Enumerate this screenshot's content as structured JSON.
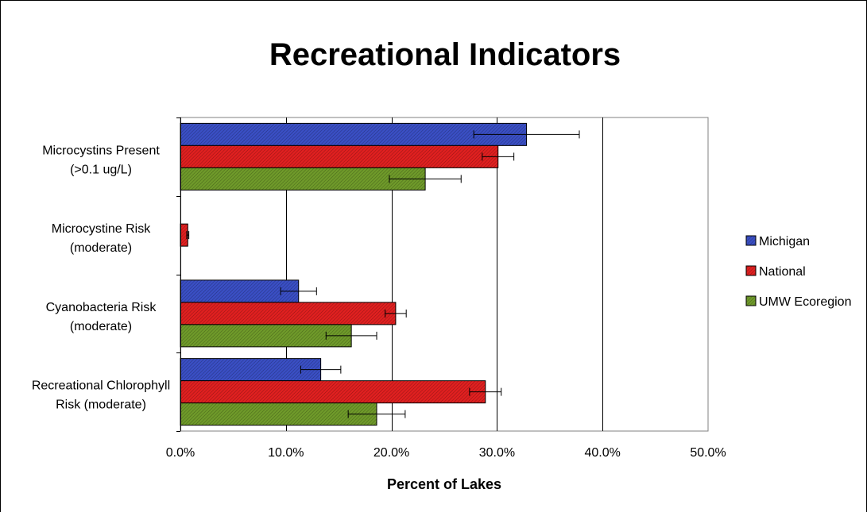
{
  "chart_data": {
    "type": "bar",
    "orientation": "horizontal",
    "title": "Recreational Indicators",
    "xlabel": "Percent of Lakes",
    "ylabel": "",
    "xlim": [
      0,
      50
    ],
    "x_ticks": [
      "0.0%",
      "10.0%",
      "20.0%",
      "30.0%",
      "40.0%",
      "50.0%"
    ],
    "grid": "vertical",
    "legend_position": "right",
    "categories": [
      [
        "Microcystins Present",
        "(>0.1 ug/L)"
      ],
      [
        "Microcystine Risk",
        "(moderate)"
      ],
      [
        "Cyanobacteria Risk",
        "(moderate)"
      ],
      [
        "Recreational Chlorophyll",
        "Risk (moderate)"
      ]
    ],
    "series": [
      {
        "name": "Michigan",
        "color": "#3a4fc4",
        "values": [
          32.8,
          0,
          11.2,
          13.3
        ],
        "errors": [
          5.0,
          0,
          1.7,
          1.9
        ]
      },
      {
        "name": "National",
        "color": "#e02020",
        "values": [
          30.1,
          0.7,
          20.4,
          28.9
        ],
        "errors": [
          1.5,
          0.1,
          1.0,
          1.5
        ]
      },
      {
        "name": "UMW Ecoregion",
        "color": "#6f9a2a",
        "values": [
          23.2,
          0,
          16.2,
          18.6
        ],
        "errors": [
          3.4,
          0,
          2.4,
          2.7
        ]
      }
    ]
  }
}
